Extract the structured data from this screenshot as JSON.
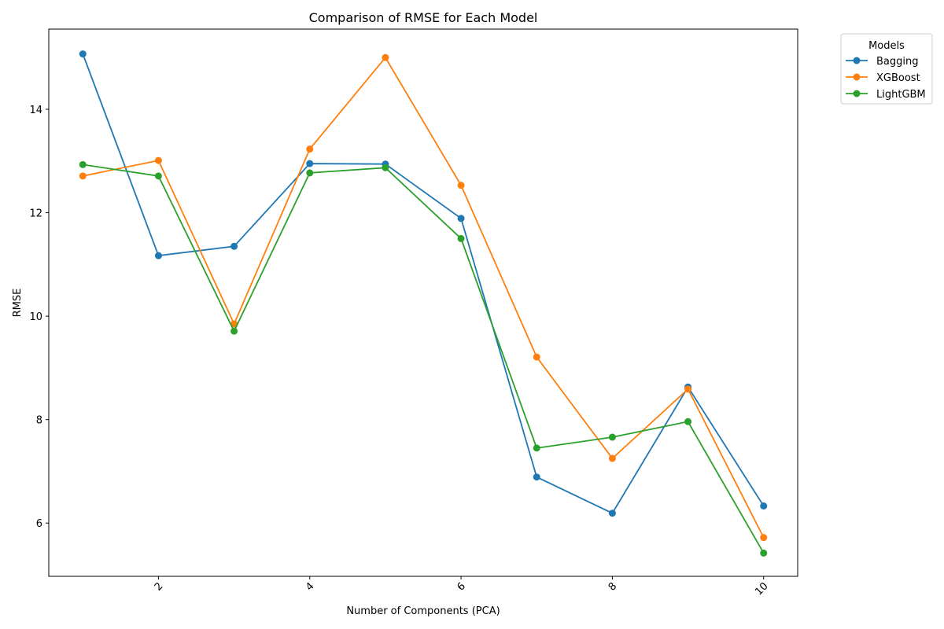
{
  "chart_data": {
    "type": "line",
    "title": "Comparison of RMSE for Each Model",
    "xlabel": "Number of Components (PCA)",
    "ylabel": "RMSE",
    "x": [
      1,
      2,
      3,
      4,
      5,
      6,
      7,
      8,
      9,
      10
    ],
    "xticks": [
      "2",
      "4",
      "6",
      "8",
      "10"
    ],
    "yticks": [
      "6",
      "8",
      "10",
      "12",
      "14"
    ],
    "xlim": [
      0.55,
      10.45
    ],
    "ylim": [
      4.97,
      15.55
    ],
    "grid": false,
    "legend": {
      "title": "Models",
      "placement": "outside-top-right"
    },
    "series": [
      {
        "name": "Bagging",
        "color": "#1f77b4",
        "values": [
          15.07,
          11.17,
          11.35,
          12.95,
          12.94,
          11.89,
          6.89,
          6.19,
          8.63,
          6.33
        ]
      },
      {
        "name": "XGBoost",
        "color": "#ff7f0e",
        "values": [
          12.71,
          13.01,
          9.85,
          13.23,
          15.0,
          12.53,
          9.21,
          7.25,
          8.59,
          5.72
        ]
      },
      {
        "name": "LightGBM",
        "color": "#2ca02c",
        "values": [
          12.93,
          12.71,
          9.71,
          12.77,
          12.87,
          11.5,
          7.45,
          7.66,
          7.96,
          5.42
        ]
      }
    ]
  }
}
